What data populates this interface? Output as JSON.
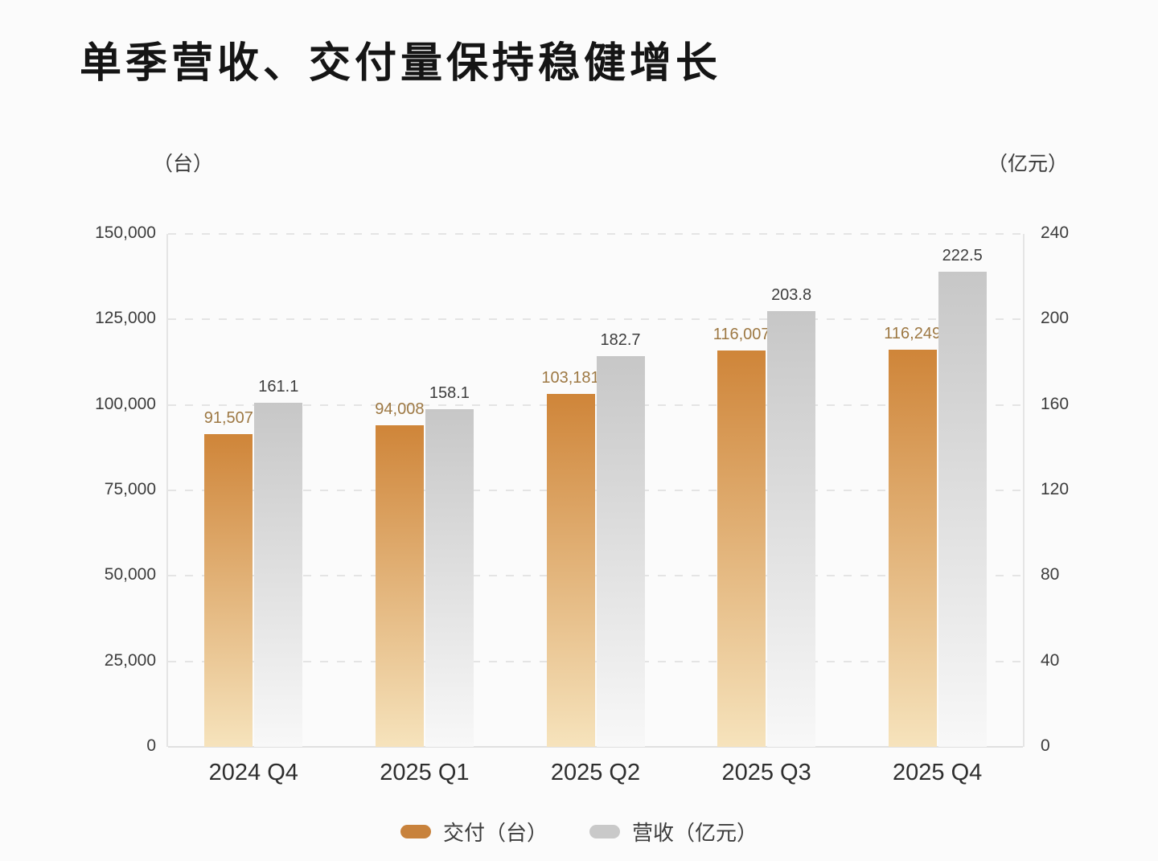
{
  "title": "单季营收、交付量保持稳健增长",
  "legend": {
    "delivery": "交付（台）",
    "revenue": "营收（亿元）"
  },
  "colors": {
    "delivery_top": "#cf8539",
    "delivery_bottom": "#f6e3bc",
    "revenue_top": "#c7c7c7",
    "revenue_bottom": "#f8f8f8",
    "delivery_label": "#9d7843",
    "revenue_label": "#3d3d3d",
    "delivery_swatch": "#c8823c",
    "revenue_swatch": "#c9c9c9"
  },
  "chart_data": {
    "type": "bar",
    "categories": [
      "2024 Q4",
      "2025 Q1",
      "2025 Q2",
      "2025 Q3",
      "2025 Q4"
    ],
    "series": [
      {
        "name": "交付（台）",
        "axis": "left",
        "values": [
          91507,
          94008,
          103181,
          116007,
          116249
        ],
        "value_labels": [
          "91,507",
          "94,008",
          "103,181",
          "116,007",
          "116,249"
        ]
      },
      {
        "name": "营收（亿元）",
        "axis": "right",
        "values": [
          161.1,
          158.1,
          182.7,
          203.8,
          222.5
        ],
        "value_labels": [
          "161.1",
          "158.1",
          "182.7",
          "203.8",
          "222.5"
        ]
      }
    ],
    "left_axis": {
      "unit": "（台）",
      "min": 0,
      "max": 150000,
      "ticks": [
        "150,000",
        "125,000",
        "100,000",
        "75,000",
        "50,000",
        "25,000",
        "0"
      ]
    },
    "right_axis": {
      "unit": "（亿元）",
      "min": 0,
      "max": 240,
      "ticks": [
        "240",
        "200",
        "160",
        "120",
        "80",
        "40",
        "0"
      ]
    },
    "grid": "horizontal-dashed",
    "legend_position": "bottom"
  }
}
